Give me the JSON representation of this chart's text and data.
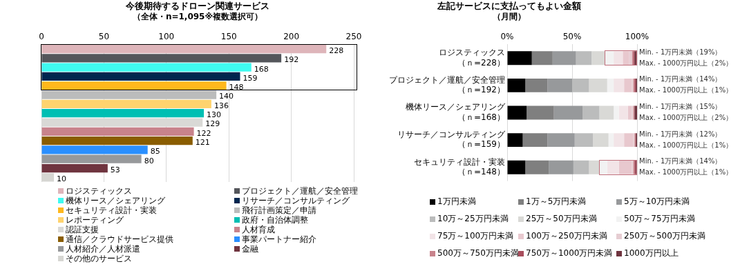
{
  "chart_data": [
    {
      "type": "bar",
      "orientation": "horizontal",
      "stacked": true,
      "title": "今後期待するドローン関連サービス",
      "subtitle": "（全体・n=1,095※複数選択可）",
      "categories": [
        null,
        null,
        null,
        null,
        null,
        null,
        null,
        null,
        null,
        null,
        null,
        null,
        null,
        null,
        null
      ],
      "series": [
        {
          "name": "ロジスティックス",
          "color": "#deb5ba",
          "values": [
            228,
            null,
            null,
            null,
            null,
            null,
            null,
            null,
            null,
            null,
            null,
            null,
            null,
            null,
            null
          ]
        },
        {
          "name": "プロジェクト／運航／安全管理",
          "color": "#54565b",
          "values": [
            null,
            192,
            null,
            null,
            null,
            null,
            null,
            null,
            null,
            null,
            null,
            null,
            null,
            null,
            null
          ]
        },
        {
          "name": "機体リース／シェアリング",
          "color": "#3ffaf0",
          "values": [
            null,
            null,
            168,
            null,
            null,
            null,
            null,
            null,
            null,
            null,
            null,
            null,
            null,
            null,
            null
          ]
        },
        {
          "name": "リサーチ／コンサルティング",
          "color": "#00264f",
          "values": [
            null,
            null,
            null,
            159,
            null,
            null,
            null,
            null,
            null,
            null,
            null,
            null,
            null,
            null,
            null
          ]
        },
        {
          "name": "セキュリティ設計・実装",
          "color": "#ffb81c",
          "values": [
            null,
            null,
            null,
            null,
            148,
            null,
            null,
            null,
            null,
            null,
            null,
            null,
            null,
            null,
            null
          ]
        },
        {
          "name": "飛行計画策定／申請",
          "color": "#bbbcbc",
          "values": [
            null,
            null,
            null,
            null,
            null,
            140,
            null,
            null,
            null,
            null,
            null,
            null,
            null,
            null,
            null
          ]
        },
        {
          "name": "レポーティング",
          "color": "#ffd36e",
          "values": [
            null,
            null,
            null,
            null,
            null,
            null,
            136,
            null,
            null,
            null,
            null,
            null,
            null,
            null,
            null
          ]
        },
        {
          "name": "政府・自治体調整",
          "color": "#00bfb3",
          "values": [
            null,
            null,
            null,
            null,
            null,
            null,
            null,
            130,
            null,
            null,
            null,
            null,
            null,
            null,
            null
          ]
        },
        {
          "name": "認証支援",
          "color": "#d9d9d6",
          "values": [
            null,
            null,
            null,
            null,
            null,
            null,
            null,
            null,
            129,
            null,
            null,
            null,
            null,
            null,
            null
          ]
        },
        {
          "name": "人材育成",
          "color": "#c8838c",
          "values": [
            null,
            null,
            null,
            null,
            null,
            null,
            null,
            null,
            null,
            122,
            null,
            null,
            null,
            null,
            null
          ]
        },
        {
          "name": "通信／クラウドサービス提供",
          "color": "#8a5d00",
          "values": [
            null,
            null,
            null,
            null,
            null,
            null,
            null,
            null,
            null,
            null,
            121,
            null,
            null,
            null,
            null
          ]
        },
        {
          "name": "事業パートナー紹介",
          "color": "#2a8fff",
          "values": [
            null,
            null,
            null,
            null,
            null,
            null,
            null,
            null,
            null,
            null,
            null,
            85,
            null,
            null,
            null
          ]
        },
        {
          "name": "人材紹介／人材派遣",
          "color": "#97999b",
          "values": [
            null,
            null,
            null,
            null,
            null,
            null,
            null,
            null,
            null,
            null,
            null,
            null,
            80,
            null,
            null
          ]
        },
        {
          "name": "金融",
          "color": "#6f343f",
          "values": [
            null,
            null,
            null,
            null,
            null,
            null,
            null,
            null,
            null,
            null,
            null,
            null,
            null,
            53,
            null
          ]
        },
        {
          "name": "その他のサービス",
          "color": "#d6d6d2",
          "values": [
            null,
            null,
            null,
            null,
            null,
            null,
            null,
            null,
            null,
            null,
            null,
            null,
            null,
            null,
            10
          ]
        }
      ],
      "xlim": [
        0,
        250
      ],
      "xticks": [
        0,
        50,
        100,
        150,
        200,
        250
      ],
      "grid": "x",
      "legend": "bottom",
      "tick_labels": "x",
      "data_labels": true
    },
    {
      "type": "bar",
      "orientation": "horizontal",
      "stacked": true,
      "title": "左記サービスに支払ってもよい金額",
      "subtitle": "（月間）",
      "categories": [
        "ロジスティックス（ｎ=228）",
        "プロジェクト／運航／安全管理（ｎ=192）",
        "機体リース／シェアリング（ｎ=168）",
        "リサーチ／コンサルティング（ｎ=159）",
        "セキュリティ設計・実装（ｎ=148）"
      ],
      "series": [
        {
          "name": "1万円未満",
          "color": "#000000",
          "values": [
            19,
            14,
            15,
            12,
            14
          ]
        },
        {
          "name": "1万～5万円未満",
          "color": "#7f7f7f",
          "values": [
            16,
            17,
            21,
            19,
            18
          ]
        },
        {
          "name": "5万～10万円未満",
          "color": "#97999b",
          "values": [
            18,
            19,
            22,
            21,
            19
          ]
        },
        {
          "name": "10万～25万円未満",
          "color": "#bbbcbc",
          "values": [
            12,
            13,
            13,
            14,
            12
          ]
        },
        {
          "name": "25万～50万円未満",
          "color": "#d9d9d6",
          "values": [
            10,
            14,
            11,
            12,
            8
          ]
        },
        {
          "name": "50万～75万円未満",
          "color": "#f2f2f2",
          "values": [
            7,
            5,
            4,
            4,
            6
          ]
        },
        {
          "name": "75万～100万円未満",
          "color": "#f2e4e7",
          "values": [
            7,
            8,
            7,
            8,
            9
          ]
        },
        {
          "name": "100万～250万円未満",
          "color": "#e8c8ce",
          "values": [
            5,
            6,
            3,
            7,
            10
          ]
        },
        {
          "name": "250万～500万円未満",
          "color": "#e6cdd2",
          "values": [
            2,
            1,
            1,
            1,
            1
          ]
        },
        {
          "name": "500万～750万円未満",
          "color": "#c8838c",
          "values": [
            1,
            1,
            1,
            1,
            1
          ]
        },
        {
          "name": "750万～1000万円未満",
          "color": "#a84d5c",
          "values": [
            1,
            1,
            0,
            0,
            1
          ]
        },
        {
          "name": "1000万円以上",
          "color": "#6f343f",
          "values": [
            2,
            1,
            2,
            1,
            1
          ]
        }
      ],
      "xlim": [
        0,
        100
      ],
      "xticks": [
        {
          "value": 0,
          "label": "0%"
        },
        {
          "value": 50,
          "label": "50%"
        },
        {
          "value": 100,
          "label": "100%"
        }
      ],
      "grid": "x",
      "legend": "bottom",
      "annotations": [
        "Min. - 1万円未満（19%）",
        "Max. - 1000万円以上（2%）",
        "Min. - 1万円未満（14%）",
        "Max. - 1000万円以上（1%）",
        "Min. - 1万円未満（15%）",
        "Max. - 1000万円以上（2%）",
        "Min. - 1万円未満（12%）",
        "Max. - 1000万円以上（1%）",
        "Min. - 1万円未満（14%）",
        "Max. - 1000万円以上（1%）"
      ]
    }
  ]
}
